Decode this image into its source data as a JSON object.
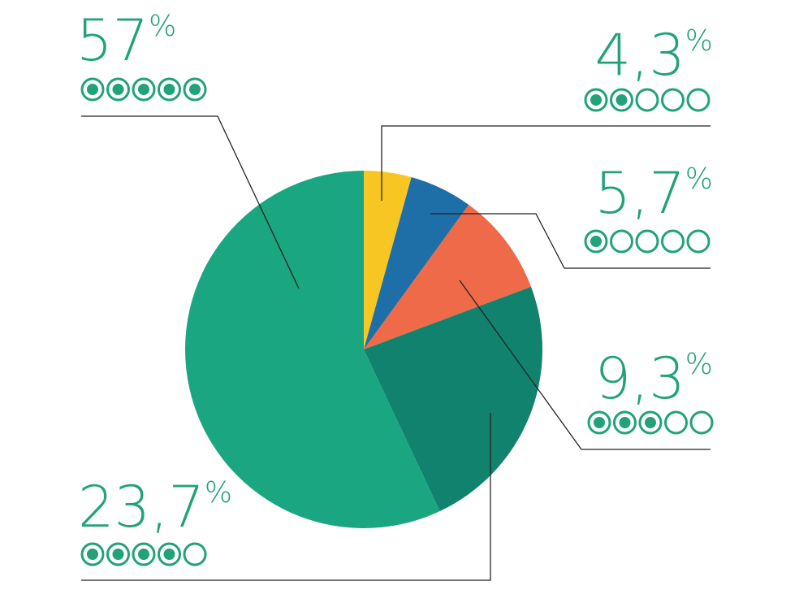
{
  "chart_data": {
    "type": "pie",
    "slices": [
      {
        "value": 4.3,
        "value_label": "4,3",
        "pct_sign": "%",
        "rating": 2,
        "rating_max": 5,
        "color": "#F7C622"
      },
      {
        "value": 5.7,
        "value_label": "5,7",
        "pct_sign": "%",
        "rating": 1,
        "rating_max": 5,
        "color": "#1E6FA8"
      },
      {
        "value": 9.3,
        "value_label": "9,3",
        "pct_sign": "%",
        "rating": 3,
        "rating_max": 5,
        "color": "#EE6A48"
      },
      {
        "value": 23.7,
        "value_label": "23,7",
        "pct_sign": "%",
        "rating": 4,
        "rating_max": 5,
        "color": "#11826E"
      },
      {
        "value": 57,
        "value_label": "57",
        "pct_sign": "%",
        "rating": 5,
        "rating_max": 5,
        "color": "#1AA681"
      }
    ],
    "label_color": "#22A27B",
    "leader_color": "#222222"
  }
}
